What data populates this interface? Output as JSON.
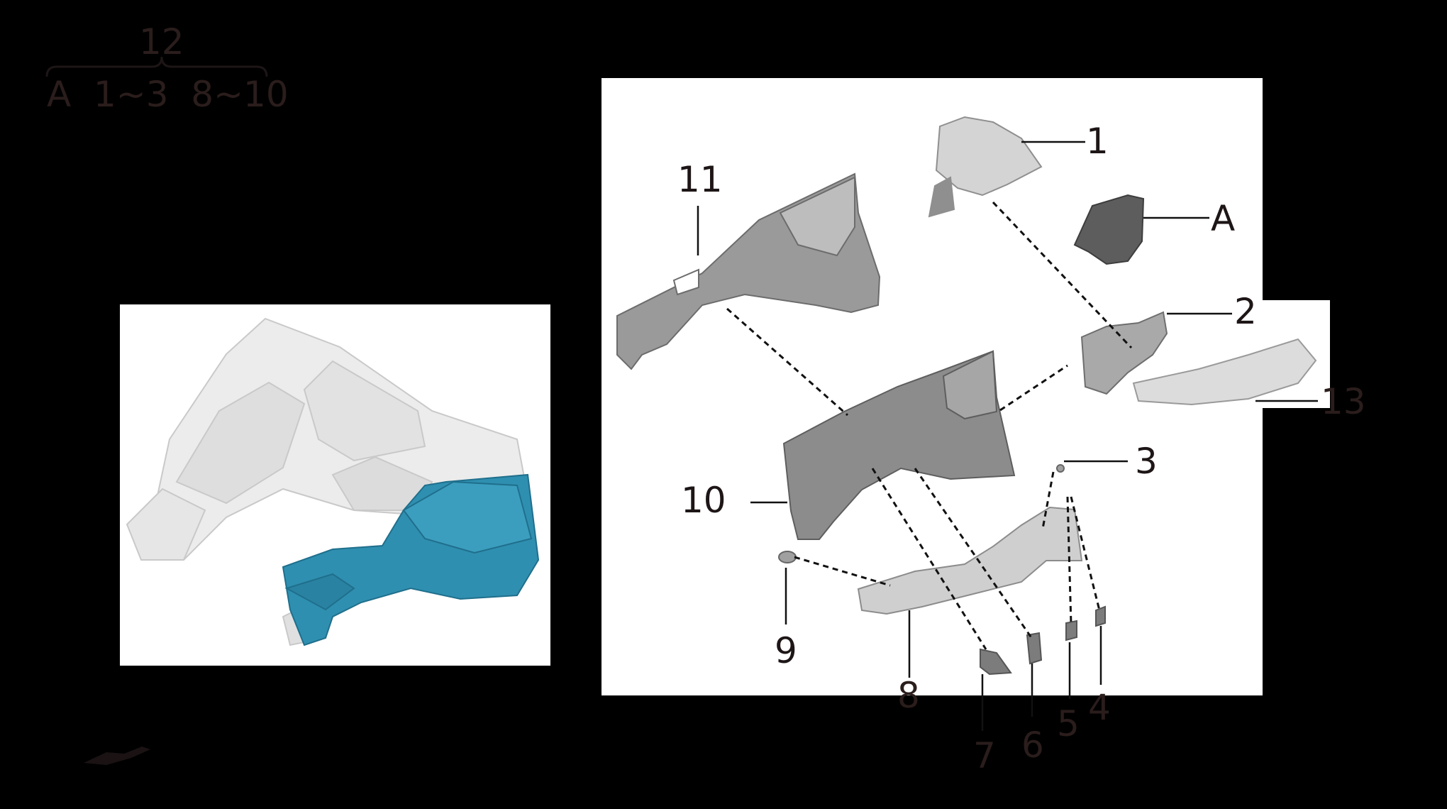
{
  "legend": {
    "group_number": "12",
    "members": "A  1~3  8~10"
  },
  "callouts": [
    {
      "id": "1",
      "text": "1"
    },
    {
      "id": "A",
      "text": "A"
    },
    {
      "id": "2",
      "text": "2"
    },
    {
      "id": "13",
      "text": "13"
    },
    {
      "id": "11",
      "text": "11"
    },
    {
      "id": "3",
      "text": "3"
    },
    {
      "id": "10",
      "text": "10"
    },
    {
      "id": "9",
      "text": "9"
    },
    {
      "id": "8",
      "text": "8"
    },
    {
      "id": "7",
      "text": "7"
    },
    {
      "id": "6",
      "text": "6"
    },
    {
      "id": "5",
      "text": "5"
    },
    {
      "id": "4",
      "text": "4"
    }
  ],
  "colors": {
    "background": "#000000",
    "panel": "#ffffff",
    "highlight": "#2f8fb0",
    "part_grey": "#8a8a8a",
    "ghost_grey": "#e4e4e4",
    "label_dark": "#1d1516"
  }
}
